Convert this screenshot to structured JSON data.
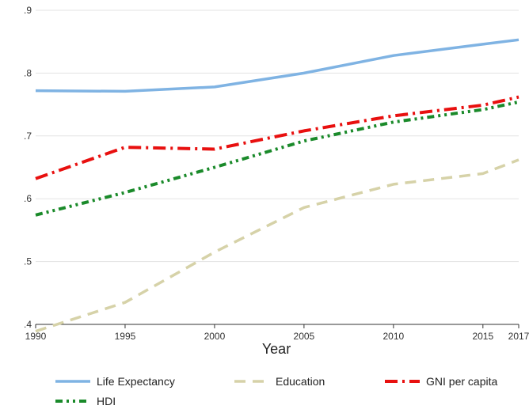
{
  "chart_data": {
    "type": "line",
    "title": "",
    "xlabel": "Year",
    "ylabel": "",
    "xticks": [
      "1990",
      "1995",
      "2000",
      "2005",
      "2010",
      "2015",
      "2017"
    ],
    "yticks": [
      ".4",
      ".5",
      ".6",
      ".7",
      ".8",
      ".9"
    ],
    "xlim": [
      1990,
      2017
    ],
    "ylim": [
      0.4,
      0.9
    ],
    "grid": "horizontal",
    "legend_position": "bottom",
    "series": [
      {
        "name": "Life Expectancy",
        "color": "#7fb3e3",
        "style": "solid",
        "x": [
          1990,
          1995,
          2000,
          2005,
          2010,
          2015,
          2017
        ],
        "values": [
          0.772,
          0.771,
          0.778,
          0.8,
          0.828,
          0.846,
          0.853
        ]
      },
      {
        "name": "Education",
        "color": "#d6d2a8",
        "style": "dash",
        "x": [
          1990,
          1995,
          2000,
          2005,
          2010,
          2015,
          2017
        ],
        "values": [
          0.389,
          0.435,
          0.515,
          0.586,
          0.623,
          0.64,
          0.662
        ]
      },
      {
        "name": "GNI per capita",
        "color": "#e8100f",
        "style": "dashdot",
        "x": [
          1990,
          1995,
          2000,
          2005,
          2010,
          2015,
          2017
        ],
        "values": [
          0.632,
          0.682,
          0.679,
          0.708,
          0.732,
          0.749,
          0.762
        ]
      },
      {
        "name": "HDI",
        "color": "#1a8a2a",
        "style": "dashdotdot",
        "x": [
          1990,
          1995,
          2000,
          2005,
          2010,
          2015,
          2017
        ],
        "values": [
          0.574,
          0.61,
          0.65,
          0.692,
          0.722,
          0.742,
          0.754
        ]
      }
    ]
  }
}
